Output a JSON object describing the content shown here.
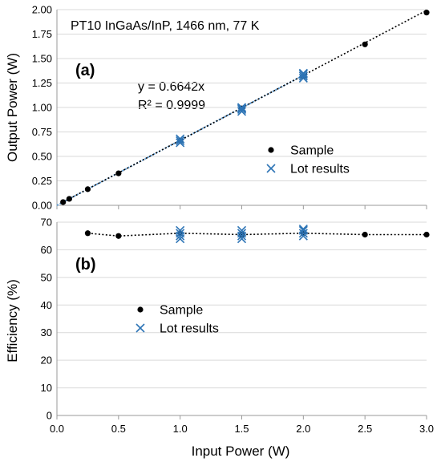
{
  "chart_data": [
    {
      "type": "scatter",
      "panel_label": "(a)",
      "title": "PT10 InGaAs/InP,  1466 nm, 77 K",
      "xlabel": "Input Power (W)",
      "ylabel": "Output Power (W)",
      "xlim": [
        0,
        3.0
      ],
      "ylim": [
        0,
        2.0
      ],
      "xticks": [
        "0.0",
        "0.5",
        "1.0",
        "1.5",
        "2.0",
        "2.5",
        "3.0"
      ],
      "yticks": [
        "0.00",
        "0.25",
        "0.50",
        "0.75",
        "1.00",
        "1.25",
        "1.50",
        "1.75",
        "2.00"
      ],
      "grid": "horizontal",
      "legend_position": "right",
      "fit_equation": "y = 0.6642x",
      "fit_r2": "R² = 0.9999",
      "fit_slope": 0.6642,
      "series": [
        {
          "name": "Sample",
          "marker": "circle",
          "color": "#000000",
          "x": [
            0.05,
            0.1,
            0.25,
            0.5,
            1.0,
            1.5,
            2.0,
            2.5,
            3.0
          ],
          "y": [
            0.033,
            0.066,
            0.165,
            0.327,
            0.66,
            0.99,
            1.32,
            1.645,
            1.97
          ]
        },
        {
          "name": "Lot results",
          "marker": "x",
          "color": "#2e75b6",
          "x": [
            1.0,
            1.0,
            1.0,
            1.5,
            1.5,
            1.5,
            1.5,
            2.0,
            2.0,
            2.0,
            2.0
          ],
          "y": [
            0.64,
            0.66,
            0.68,
            0.96,
            0.98,
            0.99,
            1.0,
            1.3,
            1.32,
            1.34,
            1.35
          ]
        }
      ]
    },
    {
      "type": "scatter",
      "panel_label": "(b)",
      "xlabel": "Input Power (W)",
      "ylabel": "Efficiency  (%)",
      "xlim": [
        0,
        3.0
      ],
      "ylim": [
        0,
        70
      ],
      "xticks": [
        "0.0",
        "0.5",
        "1.0",
        "1.5",
        "2.0",
        "2.5",
        "3.0"
      ],
      "yticks": [
        "0",
        "10",
        "20",
        "30",
        "40",
        "50",
        "60",
        "70"
      ],
      "grid": "horizontal",
      "legend_position": "center-left",
      "series": [
        {
          "name": "Sample",
          "marker": "circle",
          "color": "#000000",
          "x": [
            0.25,
            0.5,
            1.0,
            1.5,
            2.0,
            2.5,
            3.0
          ],
          "y": [
            66,
            65,
            66,
            65.5,
            66,
            65.5,
            65.5
          ]
        },
        {
          "name": "Lot results",
          "marker": "x",
          "color": "#2e75b6",
          "x": [
            1.0,
            1.0,
            1.0,
            1.0,
            1.5,
            1.5,
            1.5,
            1.5,
            2.0,
            2.0,
            2.0,
            2.0
          ],
          "y": [
            64,
            65,
            66,
            67,
            64,
            65,
            66,
            67,
            65,
            66,
            67,
            67.5
          ]
        }
      ]
    }
  ]
}
